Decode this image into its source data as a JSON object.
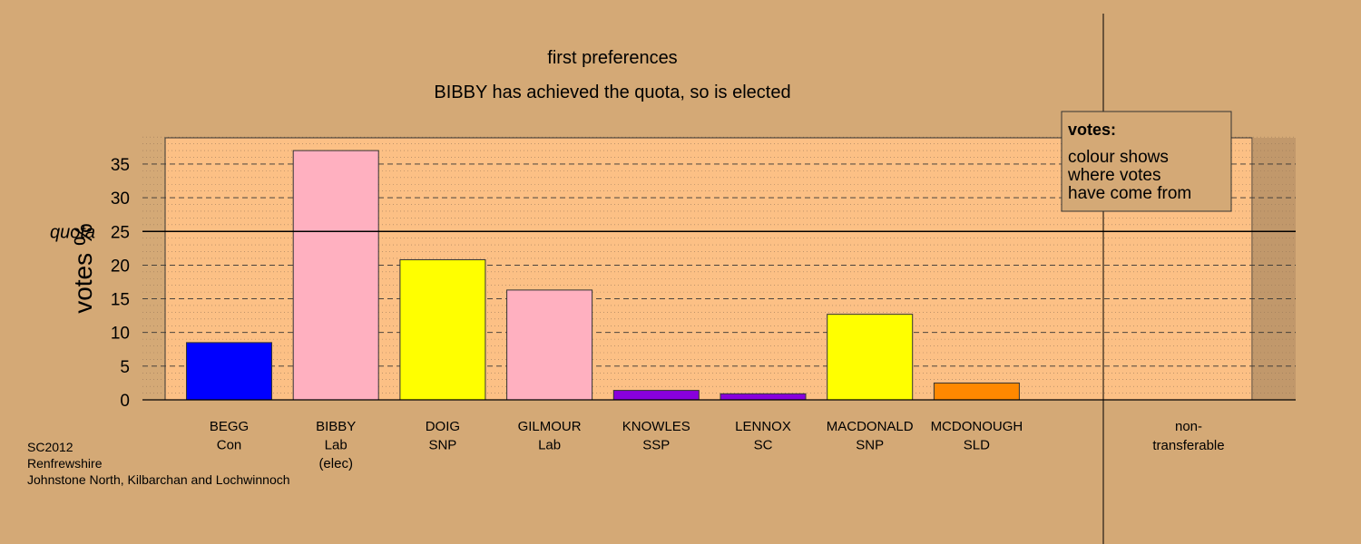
{
  "chart_data": {
    "type": "bar",
    "title": "first preferences",
    "subtitle": "BIBBY has achieved the quota, so is elected",
    "ylabel": "votes %",
    "ylim": [
      0,
      39
    ],
    "yticks": [
      0,
      5,
      10,
      15,
      20,
      25,
      30,
      35
    ],
    "quota": {
      "label": "quota",
      "value": 25
    },
    "categories": [
      {
        "name": "BEGG",
        "party": "Con",
        "note": ""
      },
      {
        "name": "BIBBY",
        "party": "Lab",
        "note": "(elec)"
      },
      {
        "name": "DOIG",
        "party": "SNP",
        "note": ""
      },
      {
        "name": "GILMOUR",
        "party": "Lab",
        "note": ""
      },
      {
        "name": "KNOWLES",
        "party": "SSP",
        "note": ""
      },
      {
        "name": "LENNOX",
        "party": "SC",
        "note": ""
      },
      {
        "name": "MACDONALD",
        "party": "SNP",
        "note": ""
      },
      {
        "name": "MCDONOUGH",
        "party": "SLD",
        "note": ""
      }
    ],
    "values": [
      8.5,
      37.0,
      20.8,
      16.3,
      1.4,
      0.9,
      12.7,
      2.5
    ],
    "colors": [
      "#0000ff",
      "#ffb0c0",
      "#ffff00",
      "#ffb0c0",
      "#8800dd",
      "#8800dd",
      "#ffff00",
      "#ff8800"
    ],
    "nontransferable": {
      "label_line1": "non-",
      "label_line2": "transferable",
      "value": 0
    },
    "legend": {
      "title": "votes:",
      "lines": [
        "colour shows",
        "where votes",
        "have come from"
      ],
      "placement": "top-right"
    },
    "grid": true
  },
  "footer": {
    "line1": "SC2012",
    "line2": "Renfrewshire",
    "line3": "Johnstone North, Kilbarchan and Lochwinnoch"
  },
  "colors": {
    "background": "#d4a976",
    "plot_background": "#fcc085"
  }
}
